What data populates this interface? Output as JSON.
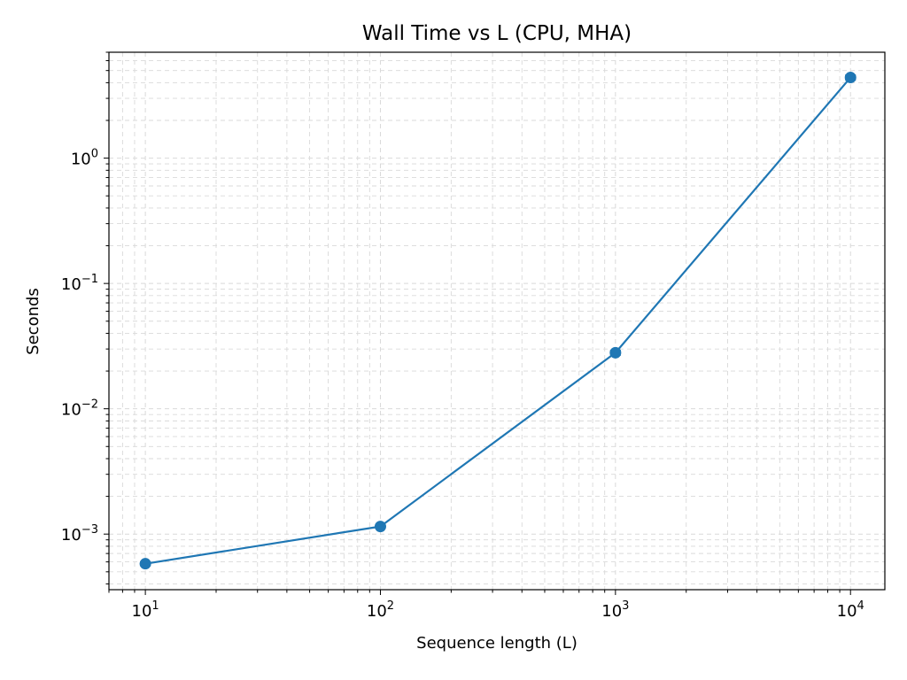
{
  "chart_data": {
    "type": "line",
    "title": "Wall Time vs L (CPU, MHA)",
    "xlabel": "Sequence length (L)",
    "ylabel": "Seconds",
    "xscale": "log",
    "yscale": "log",
    "xlim": [
      7,
      14000
    ],
    "ylim": [
      0.00036,
      7
    ],
    "grid": true,
    "grid_style": "dashed",
    "legend": "none",
    "x_ticks": [
      {
        "value": 10,
        "base": "10",
        "exp": "1"
      },
      {
        "value": 100,
        "base": "10",
        "exp": "2"
      },
      {
        "value": 1000,
        "base": "10",
        "exp": "3"
      },
      {
        "value": 10000,
        "base": "10",
        "exp": "4"
      }
    ],
    "y_ticks": [
      {
        "value": 0.001,
        "base": "10",
        "exp": "−3"
      },
      {
        "value": 0.01,
        "base": "10",
        "exp": "−2"
      },
      {
        "value": 0.1,
        "base": "10",
        "exp": "−1"
      },
      {
        "value": 1,
        "base": "10",
        "exp": "0"
      }
    ],
    "series": [
      {
        "color": "#1f77b4",
        "marker": "circle",
        "error_bars": true,
        "x": [
          10,
          100,
          1000,
          10000
        ],
        "y": [
          0.00058,
          0.00115,
          0.028,
          4.4
        ],
        "yerr": [
          2e-05,
          3e-05,
          0.0012,
          0.2
        ]
      }
    ]
  },
  "colors": {
    "series": "#1f77b4",
    "grid": "#d9d9d9",
    "axes": "#000000",
    "background": "#ffffff"
  }
}
